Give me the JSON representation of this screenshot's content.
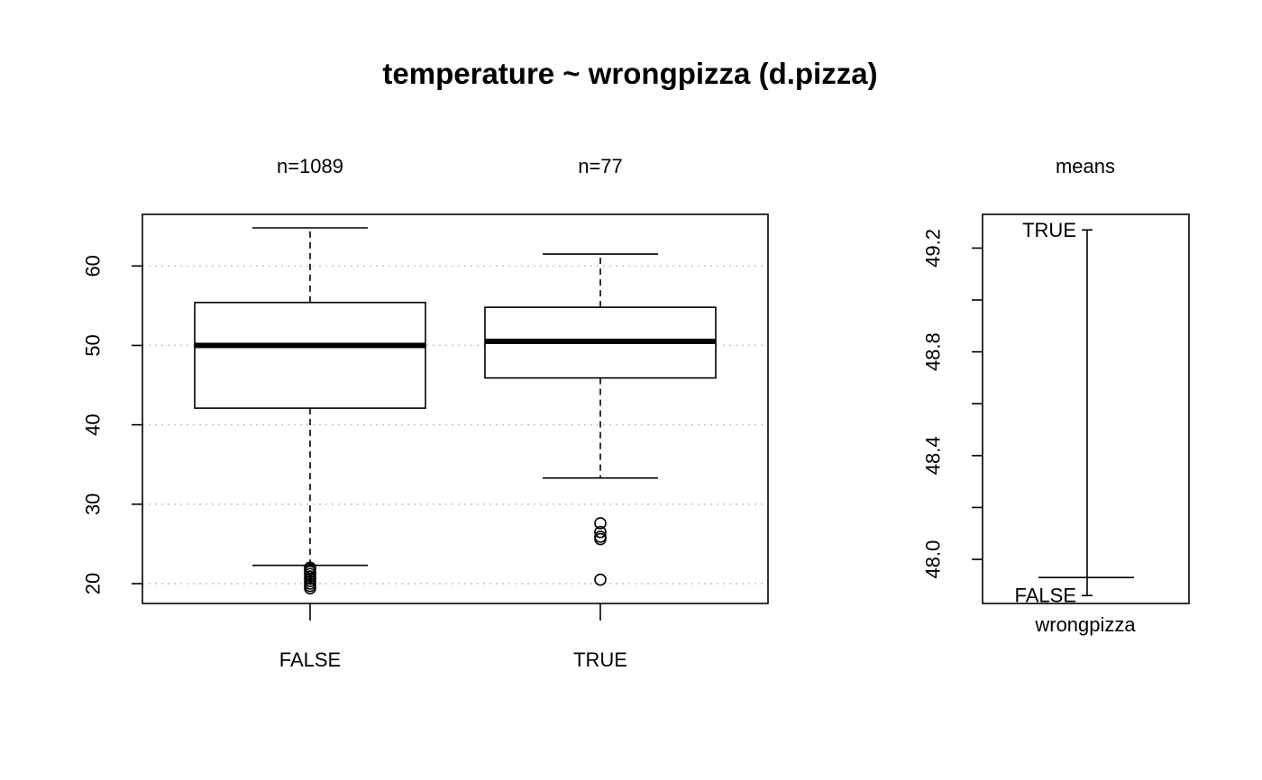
{
  "chart_data": [
    {
      "type": "box",
      "title": "temperature ~ wrongpizza (d.pizza)",
      "categories": [
        "FALSE",
        "TRUE"
      ],
      "counts": [
        "n=1089",
        "n=77"
      ],
      "ylim": [
        17.5,
        66.5
      ],
      "yticks": [
        20,
        30,
        40,
        50,
        60
      ],
      "grid": "horizontal-dotted",
      "boxes": [
        {
          "category": "FALSE",
          "whisker_low": 22.3,
          "q1": 42.1,
          "median": 50.0,
          "q3": 55.4,
          "whisker_high": 64.8,
          "outliers": [
            22.0,
            21.8,
            21.5,
            21.2,
            20.9,
            20.6,
            20.3,
            20.0,
            19.7,
            19.4
          ]
        },
        {
          "category": "TRUE",
          "whisker_low": 33.3,
          "q1": 45.9,
          "median": 50.5,
          "q3": 54.8,
          "whisker_high": 61.5,
          "outliers": [
            27.6,
            26.5,
            25.9,
            25.6,
            20.5
          ]
        }
      ]
    },
    {
      "type": "means",
      "title": "means",
      "xlabel": "wrongpizza",
      "ylim": [
        47.83,
        49.33
      ],
      "yticks": [
        48.0,
        48.4,
        48.8,
        49.2
      ],
      "ytick_labels": [
        "48.0",
        "48.4",
        "48.8",
        "49.2"
      ],
      "points": [
        {
          "label": "TRUE",
          "value": 49.27
        },
        {
          "label": "FALSE",
          "value": 47.93
        }
      ]
    }
  ]
}
